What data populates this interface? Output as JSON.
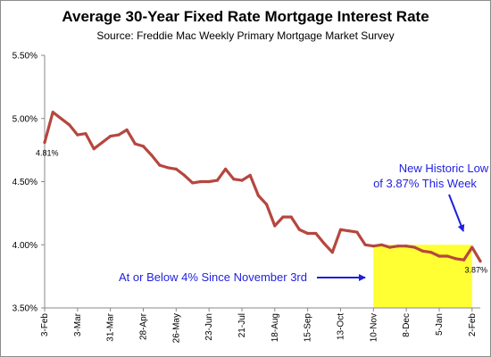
{
  "chart_data": {
    "type": "line",
    "title": "Average  30-Year Fixed Rate Mortgage Interest Rate",
    "subtitle": "Source:  Freddie  Mac Weekly  Primary  Mortgage Market Survey",
    "xlabel": "",
    "ylabel": "",
    "ylim": [
      3.5,
      5.5
    ],
    "yticks": [
      "3.50%",
      "4.00%",
      "4.50%",
      "5.00%",
      "5.50%"
    ],
    "x_tick_labels": [
      "3-Feb",
      "3-Mar",
      "31-Mar",
      "28-Apr",
      "26-May",
      "23-Jun",
      "21-Jul",
      "18-Aug",
      "15-Sep",
      "13-Oct",
      "10-Nov",
      "8-Dec",
      "5-Jan",
      "2-Feb"
    ],
    "x_tick_index": [
      0,
      4,
      8,
      12,
      16,
      20,
      24,
      28,
      32,
      36,
      40,
      44,
      48,
      52
    ],
    "grid": false,
    "line_color": "#b5473f",
    "highlight_color": "#ffff33",
    "highlight_range": {
      "x_start": 40,
      "x_end": 52,
      "y_start": 3.5,
      "y_end": 4.0
    },
    "series": [
      {
        "values": [
          4.81,
          5.05,
          5.0,
          4.95,
          4.87,
          4.88,
          4.76,
          4.81,
          4.86,
          4.87,
          4.91,
          4.8,
          4.78,
          4.71,
          4.63,
          4.61,
          4.6,
          4.55,
          4.49,
          4.5,
          4.5,
          4.51,
          4.6,
          4.52,
          4.51,
          4.55,
          4.39,
          4.32,
          4.15,
          4.22,
          4.22,
          4.12,
          4.09,
          4.09,
          4.01,
          3.94,
          4.12,
          4.11,
          4.1,
          4.0,
          3.99,
          4.0,
          3.98,
          3.99,
          3.99,
          3.98,
          3.95,
          3.94,
          3.91,
          3.91,
          3.89,
          3.88,
          3.98,
          3.87
        ]
      }
    ],
    "data_labels": [
      {
        "index": 0,
        "text": "4.81%"
      },
      {
        "index": 53,
        "text": "3.87%"
      }
    ],
    "annotations": {
      "historic_low_line1": "New Historic Low",
      "historic_low_line2": "of 3.87% This Week",
      "below_4": "At or Below 4% Since November 3rd"
    }
  }
}
